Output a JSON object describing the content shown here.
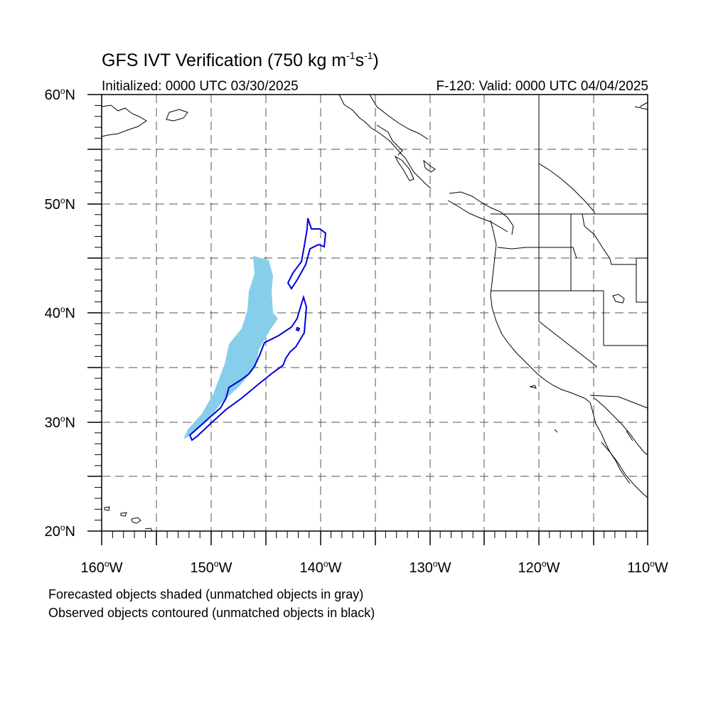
{
  "title": {
    "prefix": "GFS IVT Verification (750 kg m",
    "exp1": "-1",
    "mid": "s",
    "exp2": "-1",
    "suffix": ")"
  },
  "subtitle_left": "Initialized: 0000 UTC 03/30/2025",
  "subtitle_right": "F-120: Valid: 0000 UTC 04/04/2025",
  "axes": {
    "lat_labels": [
      {
        "num": "60",
        "hemi": "N"
      },
      {
        "num": "50",
        "hemi": "N"
      },
      {
        "num": "40",
        "hemi": "N"
      },
      {
        "num": "30",
        "hemi": "N"
      },
      {
        "num": "20",
        "hemi": "N"
      }
    ],
    "lon_labels": [
      {
        "num": "160",
        "hemi": "W"
      },
      {
        "num": "150",
        "hemi": "W"
      },
      {
        "num": "140",
        "hemi": "W"
      },
      {
        "num": "130",
        "hemi": "W"
      },
      {
        "num": "120",
        "hemi": "W"
      },
      {
        "num": "110",
        "hemi": "W"
      }
    ],
    "degree_symbol": "o",
    "lat_range": [
      20,
      60
    ],
    "lon_range": [
      -160,
      -110
    ],
    "gridline_interval": 5
  },
  "legend_notes": [
    "Forecasted objects shaded (unmatched objects in gray)",
    "Observed objects contoured (unmatched objects in black)"
  ],
  "colors": {
    "forecast_fill": "#87ceeb",
    "observed_contour": "#0000dd",
    "coastline": "#000000",
    "grid": "#555555"
  }
}
